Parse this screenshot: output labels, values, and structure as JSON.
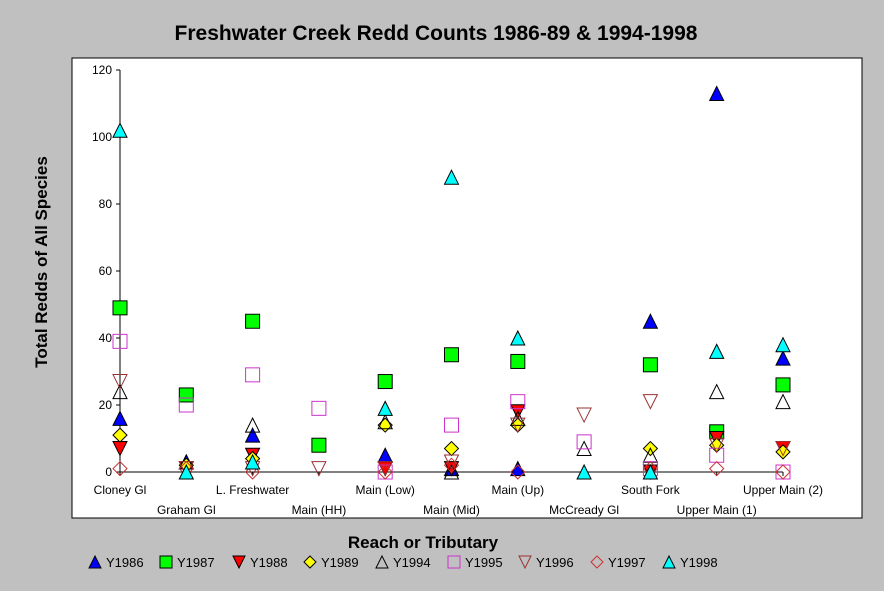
{
  "chart_data": {
    "type": "scatter",
    "title": "Freshwater Creek Redd Counts 1986-89 & 1994-1998",
    "xlabel": "Reach or Tributary",
    "ylabel": "Total Redds of All Species",
    "ylim": [
      0,
      120
    ],
    "yticks": [
      0,
      20,
      40,
      60,
      80,
      100,
      120
    ],
    "grid": false,
    "legend_position": "bottom",
    "categories": [
      "Cloney Gl",
      "Graham Gl",
      "L. Freshwater",
      "Main (HH)",
      "Main (Low)",
      "Main (Mid)",
      "Main (Up)",
      "McCready Gl",
      "South Fork",
      "Upper Main (1)",
      "Upper Main (2)"
    ],
    "series": [
      {
        "name": "Y1986",
        "marker": "triangle-up",
        "fill": "#0000ff",
        "stroke": "#000000",
        "values": [
          16,
          3,
          11,
          null,
          5,
          1,
          1,
          null,
          45,
          113,
          34
        ]
      },
      {
        "name": "Y1987",
        "marker": "square",
        "fill": "#00ff00",
        "stroke": "#000000",
        "values": [
          49,
          23,
          45,
          8,
          27,
          35,
          33,
          null,
          32,
          12,
          26
        ]
      },
      {
        "name": "Y1988",
        "marker": "triangle-down",
        "fill": "#ff0000",
        "stroke": "#000000",
        "values": [
          7,
          1,
          5,
          null,
          1,
          1,
          18,
          null,
          0,
          10,
          7
        ]
      },
      {
        "name": "Y1989",
        "marker": "diamond",
        "fill": "#ffff00",
        "stroke": "#000000",
        "values": [
          11,
          2,
          4,
          null,
          14,
          7,
          14,
          null,
          7,
          8,
          6
        ]
      },
      {
        "name": "Y1994",
        "marker": "triangle-up",
        "fill": "none",
        "stroke": "#000000",
        "values": [
          24,
          3,
          14,
          null,
          15,
          0,
          16,
          7,
          5,
          24,
          21
        ]
      },
      {
        "name": "Y1995",
        "marker": "square",
        "fill": "none",
        "stroke": "#cc33cc",
        "values": [
          39,
          20,
          29,
          19,
          0,
          14,
          21,
          9,
          1,
          5,
          0
        ]
      },
      {
        "name": "Y1996",
        "marker": "triangle-down",
        "fill": "none",
        "stroke": "#993333",
        "values": [
          27,
          1,
          1,
          1,
          1,
          3,
          14,
          17,
          21,
          8,
          7
        ]
      },
      {
        "name": "Y1997",
        "marker": "diamond",
        "fill": "none",
        "stroke": "#cc3333",
        "values": [
          1,
          1,
          0,
          null,
          0,
          2,
          0,
          null,
          1,
          1,
          0
        ]
      },
      {
        "name": "Y1998",
        "marker": "triangle-up",
        "fill": "#00ffff",
        "stroke": "#000000",
        "values": [
          102,
          0,
          3,
          null,
          19,
          88,
          40,
          0,
          0,
          36,
          38
        ]
      }
    ]
  }
}
